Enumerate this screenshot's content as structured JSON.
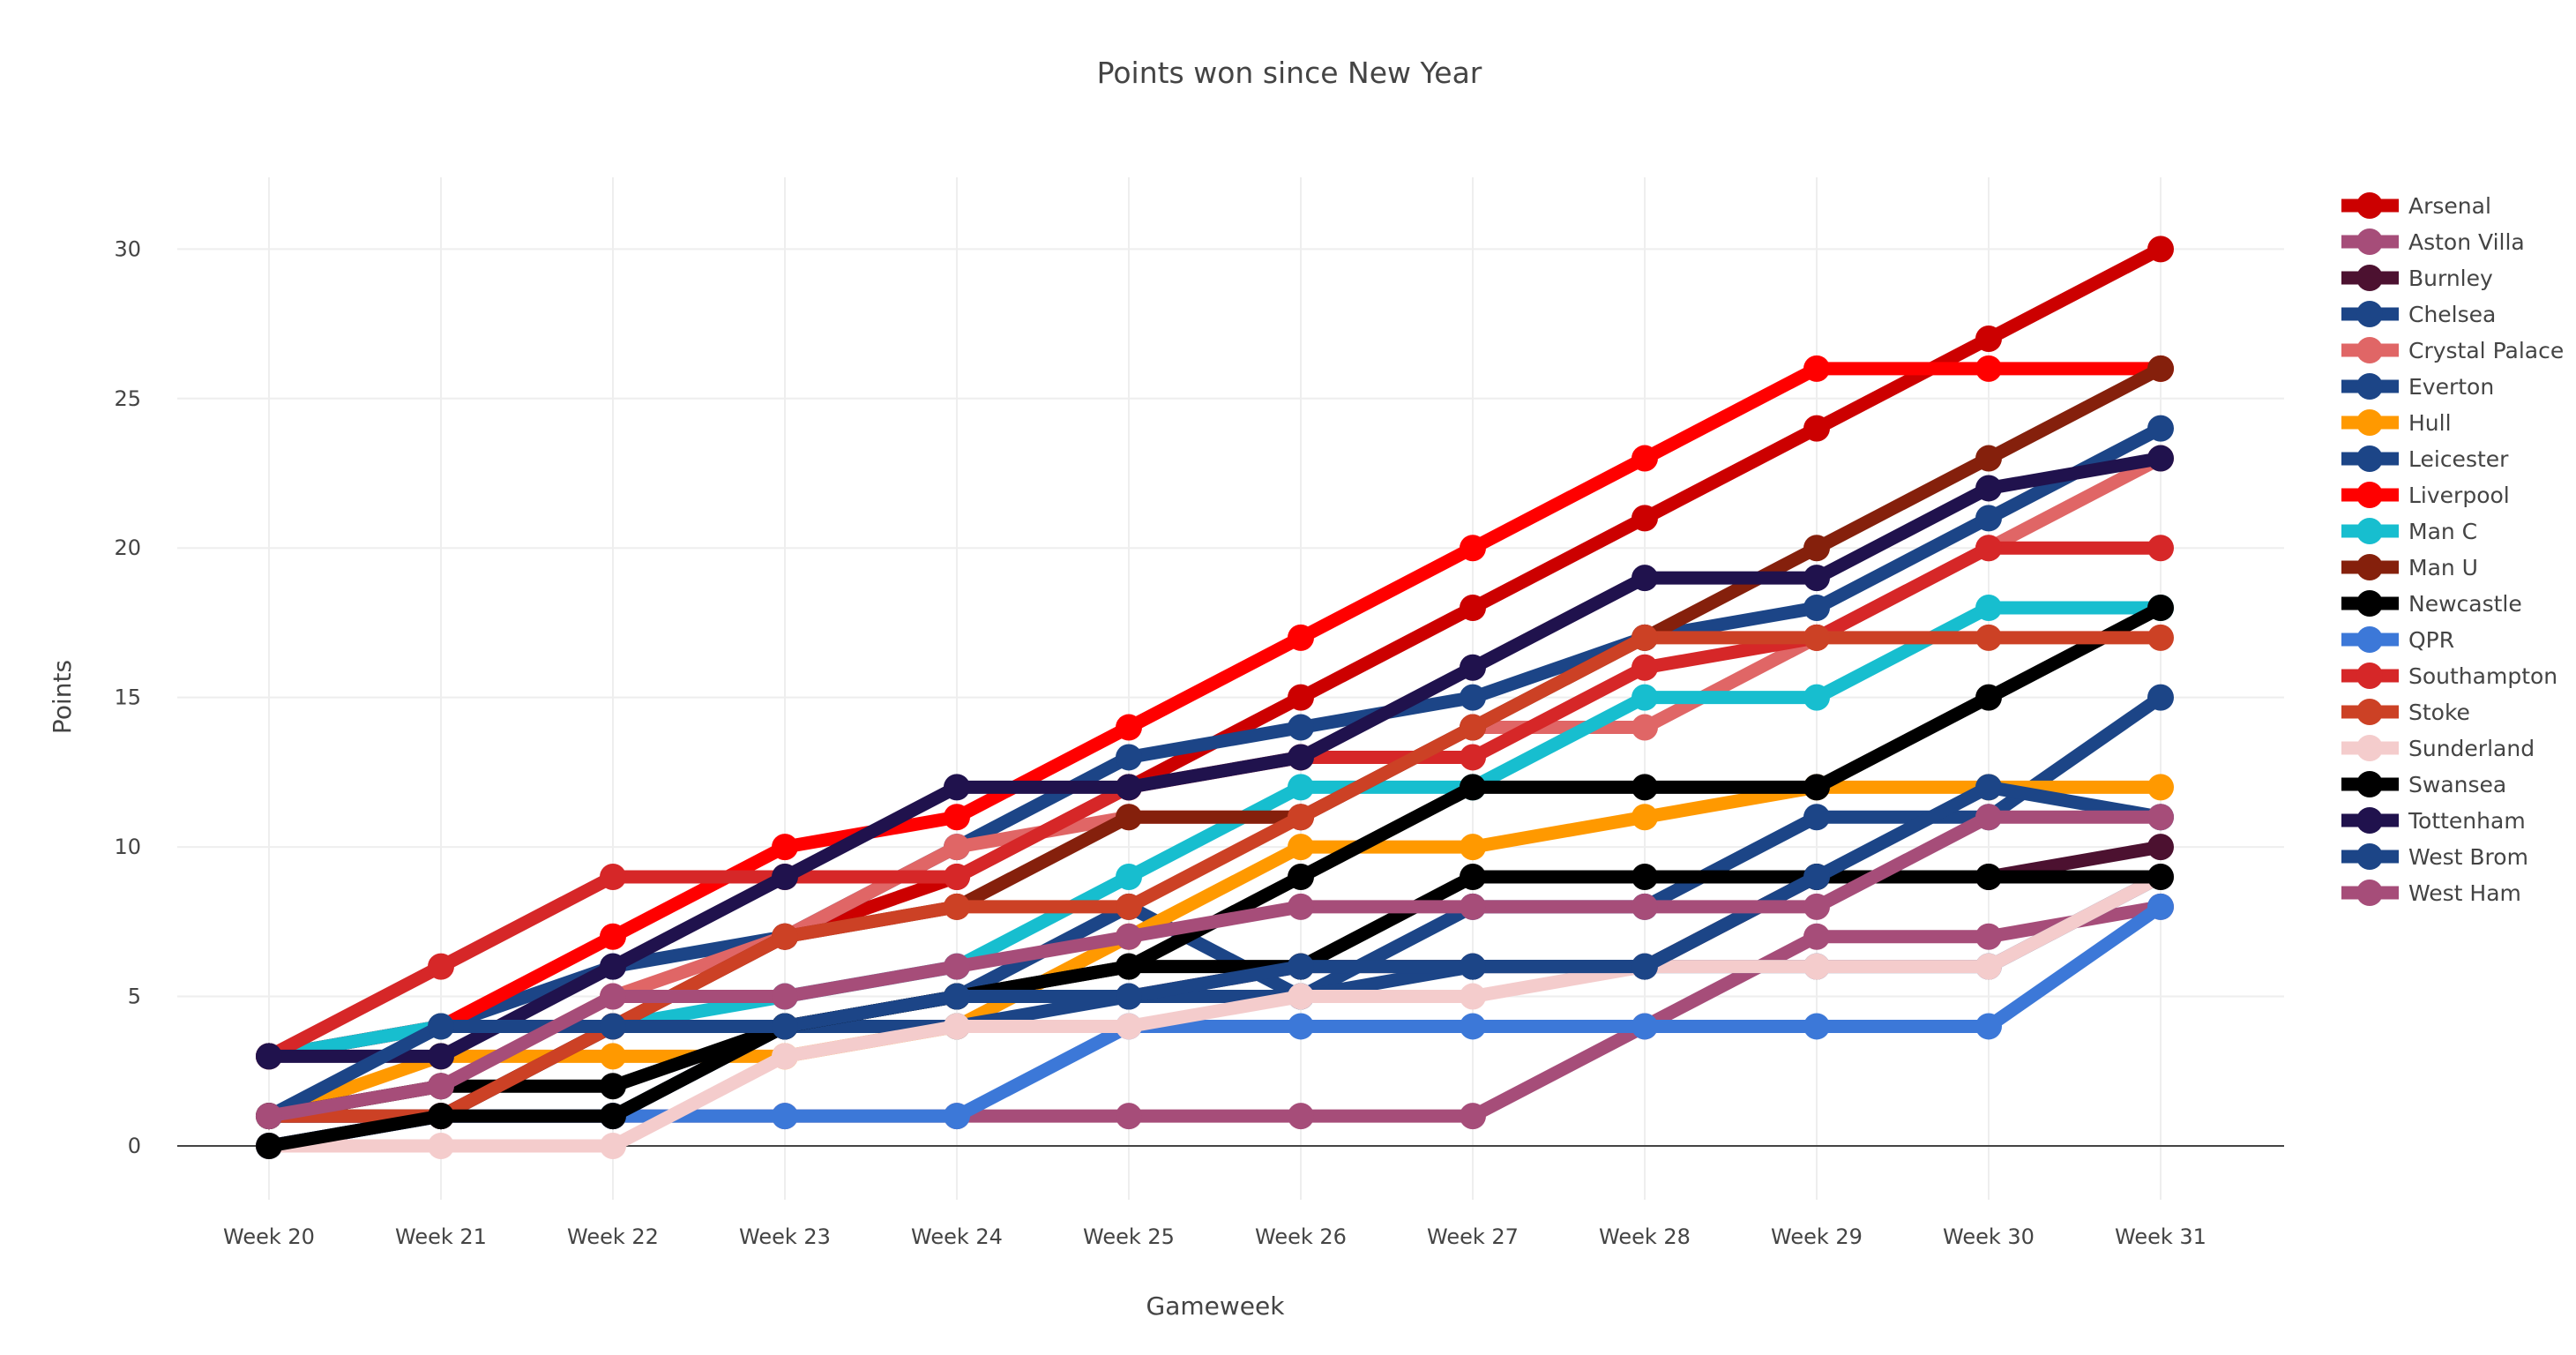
{
  "chart_data": {
    "type": "line",
    "title": "Points won since New Year",
    "xlabel": "Gameweek",
    "ylabel": "Points",
    "categories": [
      "Week 20",
      "Week 21",
      "Week 22",
      "Week 23",
      "Week 24",
      "Week 25",
      "Week 26",
      "Week 27",
      "Week 28",
      "Week 29",
      "Week 30",
      "Week 31"
    ],
    "yticks": [
      0,
      5,
      10,
      15,
      20,
      25,
      30
    ],
    "ylim": [
      -1.8,
      32.4
    ],
    "grid": true,
    "legend": "right",
    "series": [
      {
        "name": "Arsenal",
        "color": "#cc0000",
        "values": [
          1,
          1,
          4,
          7,
          9,
          12,
          15,
          18,
          21,
          24,
          27,
          30
        ]
      },
      {
        "name": "Aston Villa",
        "color": "#a64d79",
        "values": [
          1,
          1,
          1,
          1,
          1,
          1,
          1,
          1,
          4,
          7,
          7,
          8
        ]
      },
      {
        "name": "Burnley",
        "color": "#4c1130",
        "values": [
          0,
          1,
          4,
          4,
          5,
          5,
          6,
          6,
          6,
          9,
          9,
          10
        ]
      },
      {
        "name": "Chelsea",
        "color": "#1c4587",
        "values": [
          3,
          4,
          6,
          7,
          10,
          13,
          14,
          15,
          17,
          18,
          21,
          24
        ]
      },
      {
        "name": "Crystal Palace",
        "color": "#e06666",
        "values": [
          1,
          2,
          5,
          7,
          10,
          11,
          11,
          14,
          14,
          17,
          20,
          23
        ]
      },
      {
        "name": "Everton",
        "color": "#1c4587",
        "values": [
          1,
          1,
          4,
          4,
          5,
          8,
          5,
          8,
          8,
          11,
          11,
          15
        ]
      },
      {
        "name": "Hull",
        "color": "#ff9900",
        "values": [
          1,
          3,
          3,
          3,
          4,
          7,
          10,
          10,
          11,
          12,
          12,
          12
        ]
      },
      {
        "name": "Leicester",
        "color": "#1c4587",
        "values": [
          0,
          1,
          1,
          4,
          4,
          5,
          5,
          6,
          6,
          6,
          6,
          9
        ]
      },
      {
        "name": "Liverpool",
        "color": "#ff0000",
        "values": [
          3,
          4,
          7,
          10,
          11,
          14,
          17,
          20,
          23,
          26,
          26,
          26
        ]
      },
      {
        "name": "Man C",
        "color": "#17becf",
        "values": [
          3,
          4,
          4,
          5,
          6,
          9,
          12,
          12,
          15,
          15,
          18,
          18
        ]
      },
      {
        "name": "Man U",
        "color": "#85200c",
        "values": [
          1,
          1,
          4,
          7,
          8,
          11,
          11,
          14,
          17,
          20,
          23,
          26
        ]
      },
      {
        "name": "Newcastle",
        "color": "#000000",
        "values": [
          1,
          2,
          2,
          4,
          5,
          6,
          9,
          12,
          12,
          12,
          15,
          18
        ]
      },
      {
        "name": "QPR",
        "color": "#3c78d8",
        "values": [
          0,
          1,
          1,
          1,
          1,
          4,
          4,
          4,
          4,
          4,
          4,
          8
        ]
      },
      {
        "name": "Southampton",
        "color": "#d62728",
        "values": [
          3,
          6,
          9,
          9,
          9,
          12,
          13,
          13,
          16,
          17,
          20,
          20
        ]
      },
      {
        "name": "Stoke",
        "color": "#cc4125",
        "values": [
          1,
          1,
          4,
          7,
          8,
          8,
          11,
          14,
          17,
          17,
          17,
          17
        ]
      },
      {
        "name": "Sunderland",
        "color": "#f4cccc",
        "values": [
          0,
          0,
          0,
          3,
          4,
          4,
          5,
          5,
          6,
          6,
          6,
          9
        ]
      },
      {
        "name": "Swansea",
        "color": "#000000",
        "values": [
          0,
          1,
          1,
          4,
          5,
          6,
          6,
          9,
          9,
          9,
          9,
          9
        ]
      },
      {
        "name": "Tottenham",
        "color": "#20124d",
        "values": [
          3,
          3,
          6,
          9,
          12,
          12,
          13,
          16,
          19,
          19,
          22,
          23
        ]
      },
      {
        "name": "West Brom",
        "color": "#1c4587",
        "values": [
          1,
          4,
          4,
          4,
          5,
          5,
          6,
          6,
          6,
          9,
          12,
          11
        ]
      },
      {
        "name": "West Ham",
        "color": "#a64d79",
        "values": [
          1,
          2,
          5,
          5,
          6,
          7,
          8,
          8,
          8,
          8,
          11,
          11
        ]
      }
    ]
  }
}
